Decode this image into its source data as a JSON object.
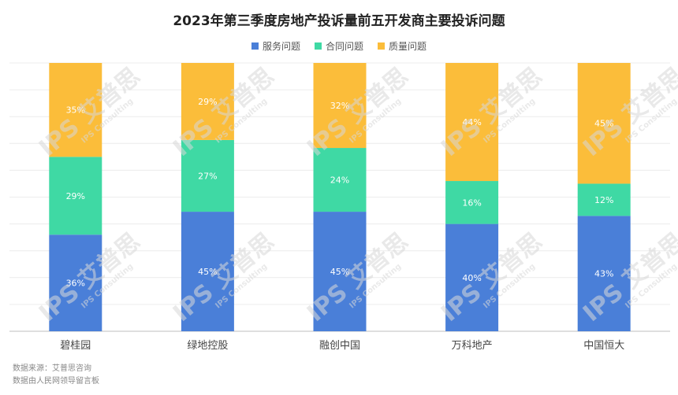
{
  "title": "2023年第三季度房地产投诉量前五开发商主要投诉问题",
  "legend": [
    {
      "name": "服务问题",
      "color": "#4a7fd8"
    },
    {
      "name": "合同问题",
      "color": "#3fd9a4"
    },
    {
      "name": "质量问题",
      "color": "#fbbd3a"
    }
  ],
  "chart_data": {
    "type": "bar",
    "stacked": true,
    "categories": [
      "碧桂园",
      "绿地控股",
      "融创中国",
      "万科地产",
      "中国恒大"
    ],
    "series": [
      {
        "name": "服务问题",
        "color": "#4a7fd8",
        "values": [
          36,
          45,
          45,
          40,
          43
        ]
      },
      {
        "name": "合同问题",
        "color": "#3fd9a4",
        "values": [
          29,
          27,
          24,
          16,
          12
        ]
      },
      {
        "name": "质量问题",
        "color": "#fbbd3a",
        "values": [
          35,
          29,
          32,
          44,
          45
        ]
      }
    ],
    "value_suffix": "%",
    "legend_position": "top",
    "grid": true
  },
  "source": {
    "line1": "数据来源：艾普思咨询",
    "line2": "数据由人民网领导留言板"
  },
  "watermark": {
    "brand": "IPS 艾普思",
    "sub": "IPS Consulting"
  }
}
